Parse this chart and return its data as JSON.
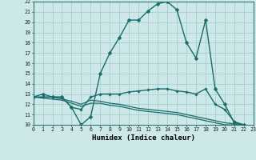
{
  "bg_color": "#cce8e8",
  "grid_color": "#aacccc",
  "line_color": "#1a6b6b",
  "xlabel": "Humidex (Indice chaleur)",
  "ylim": [
    10,
    22
  ],
  "xlim": [
    0,
    23
  ],
  "yticks": [
    10,
    11,
    12,
    13,
    14,
    15,
    16,
    17,
    18,
    19,
    20,
    21,
    22
  ],
  "xticks": [
    0,
    1,
    2,
    3,
    4,
    5,
    6,
    7,
    8,
    9,
    10,
    11,
    12,
    13,
    14,
    15,
    16,
    17,
    18,
    19,
    20,
    21,
    22,
    23
  ],
  "lines": [
    {
      "x": [
        0,
        1,
        2,
        3,
        4,
        5,
        6,
        7,
        8,
        9,
        10,
        11,
        12,
        13,
        14,
        15,
        16,
        17,
        18,
        19,
        20,
        21,
        22
      ],
      "y": [
        12.7,
        13.0,
        12.7,
        12.7,
        11.7,
        10.0,
        10.8,
        15.0,
        17.0,
        18.5,
        20.2,
        20.2,
        21.1,
        21.8,
        22.0,
        21.2,
        18.0,
        16.5,
        20.2,
        13.5,
        12.0,
        10.2,
        10.0
      ],
      "marker": "D",
      "markersize": 2.5,
      "lw": 1.0
    },
    {
      "x": [
        0,
        1,
        2,
        3,
        4,
        5,
        6,
        7,
        8,
        9,
        10,
        11,
        12,
        13,
        14,
        15,
        16,
        17,
        18,
        19,
        20,
        21,
        22
      ],
      "y": [
        12.7,
        12.7,
        12.7,
        12.7,
        11.7,
        11.5,
        12.7,
        13.0,
        13.0,
        13.0,
        13.2,
        13.3,
        13.4,
        13.5,
        13.5,
        13.3,
        13.2,
        13.0,
        13.5,
        12.0,
        11.5,
        10.3,
        10.0
      ],
      "marker": "D",
      "markersize": 1.8,
      "lw": 1.0
    },
    {
      "x": [
        0,
        1,
        2,
        3,
        4,
        5,
        6,
        7,
        8,
        9,
        10,
        11,
        12,
        13,
        14,
        15,
        16,
        17,
        18,
        19,
        20,
        21,
        22
      ],
      "y": [
        12.7,
        12.7,
        12.7,
        12.5,
        12.3,
        12.0,
        12.4,
        12.3,
        12.1,
        12.0,
        11.8,
        11.6,
        11.5,
        11.4,
        11.3,
        11.2,
        11.0,
        10.8,
        10.6,
        10.4,
        10.2,
        10.1,
        10.0
      ],
      "marker": null,
      "markersize": 0,
      "lw": 0.9
    },
    {
      "x": [
        0,
        1,
        2,
        3,
        4,
        5,
        6,
        7,
        8,
        9,
        10,
        11,
        12,
        13,
        14,
        15,
        16,
        17,
        18,
        19,
        20,
        21,
        22
      ],
      "y": [
        12.7,
        12.6,
        12.5,
        12.4,
        12.1,
        11.8,
        12.1,
        12.1,
        11.9,
        11.8,
        11.6,
        11.4,
        11.3,
        11.2,
        11.1,
        11.0,
        10.8,
        10.6,
        10.4,
        10.2,
        10.0,
        10.0,
        10.0
      ],
      "marker": null,
      "markersize": 0,
      "lw": 0.9
    }
  ]
}
